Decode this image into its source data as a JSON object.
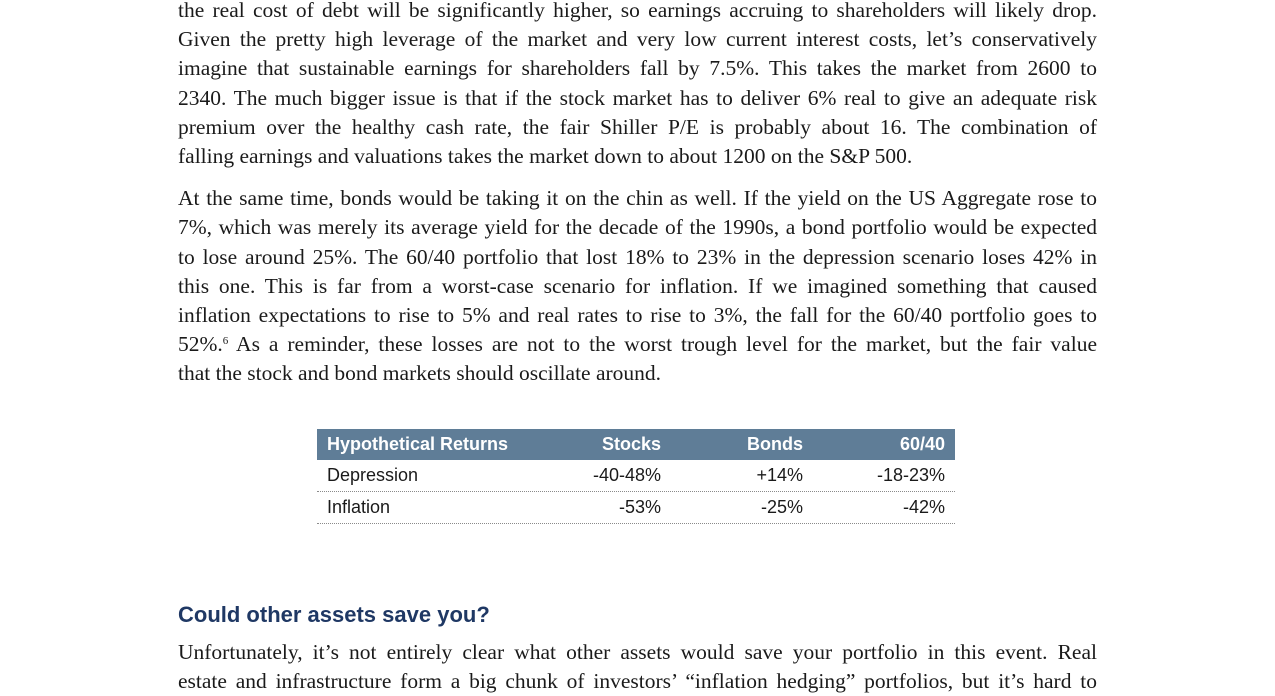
{
  "paragraph1": {
    "lines": [
      "the real cost of debt will be significantly higher, so earnings accruing to shareholders will likely drop.",
      "Given the pretty high leverage of the market and very low current interest costs, let’s conservatively",
      "imagine that sustainable earnings for shareholders fall by 7.5%. This takes the market from 2600 to",
      "2340. The much bigger issue is that if the stock market has to deliver 6% real to give an adequate risk",
      "premium over the healthy cash rate, the fair Shiller P/E is probably about 16. The combination of",
      "falling earnings and valuations takes the market down to about 1200 on the S&P 500."
    ]
  },
  "paragraph2": {
    "lines": [
      "At the same time, bonds would be taking it on the chin as well. If the yield on the US Aggregate rose to",
      "7%, which was merely its average yield for the decade of the 1990s, a bond portfolio would be expected",
      "to lose around 25%. The 60/40 portfolio that lost 18% to 23% in the depression scenario loses 42% in",
      "this one. This is far from a worst-case scenario for inflation. If we imagined something that caused",
      "inflation expectations to rise to 5% and real rates to rise to 3%, the fall for the 60/40 portfolio goes to"
    ],
    "line6_before": "52%.",
    "footnote": "6",
    "line6_after": " As a reminder, these losses are not to the worst trough level for the market, but the fair value",
    "line7": "that the stock and bond markets should oscillate around."
  },
  "table": {
    "headers": [
      "Hypothetical Returns",
      "Stocks",
      "Bonds",
      "60/40"
    ],
    "rows": [
      [
        "Depression",
        "-40-48%",
        "+14%",
        "-18-23%"
      ],
      [
        "Inflation",
        "-53%",
        "-25%",
        "-42%"
      ]
    ],
    "header_color": "#5f7d97"
  },
  "section_heading": "Could other assets save you?",
  "paragraph3": {
    "lines": [
      "Unfortunately, it’s not entirely clear what other assets would save your portfolio in this event. Real",
      "estate and infrastructure form a big chunk of investors’ “inflation hedging” portfolios, but it’s hard to"
    ]
  },
  "colors": {
    "heading": "#1f3864",
    "body_text": "#1a1a1a"
  }
}
